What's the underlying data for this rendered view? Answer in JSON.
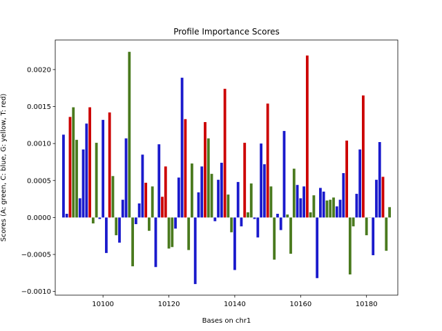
{
  "chart_data": {
    "type": "bar",
    "title": "Profile Importance Scores",
    "xlabel": "Bases on chr1",
    "ylabel": "Scores (A: green, C: blue, G: yellow, T: red)",
    "xlim": [
      10085.5,
      10189.5
    ],
    "ylim": [
      -0.00105,
      0.0024
    ],
    "xticks": [
      10100,
      10120,
      10140,
      10160,
      10180
    ],
    "yticks": [
      -0.001,
      -0.0005,
      0.0,
      0.0005,
      0.001,
      0.0015,
      0.002
    ],
    "ytick_labels": [
      "−0.0010",
      "−0.0005",
      "0.0000",
      "0.0005",
      "0.0010",
      "0.0015",
      "0.0020"
    ],
    "grid": false,
    "colors": {
      "A": "#4a7a1e",
      "C": "#1a1acc",
      "G": "#ffb000",
      "T": "#cc0000"
    },
    "x": [
      10088,
      10089,
      10090,
      10091,
      10092,
      10093,
      10094,
      10095,
      10096,
      10097,
      10098,
      10099,
      10100,
      10101,
      10102,
      10103,
      10104,
      10105,
      10106,
      10107,
      10108,
      10109,
      10110,
      10111,
      10112,
      10113,
      10114,
      10115,
      10116,
      10117,
      10118,
      10119,
      10120,
      10121,
      10122,
      10123,
      10124,
      10125,
      10126,
      10127,
      10128,
      10129,
      10130,
      10131,
      10132,
      10133,
      10134,
      10135,
      10136,
      10137,
      10138,
      10139,
      10140,
      10141,
      10142,
      10143,
      10144,
      10145,
      10146,
      10147,
      10148,
      10149,
      10150,
      10151,
      10152,
      10153,
      10154,
      10155,
      10156,
      10157,
      10158,
      10159,
      10160,
      10161,
      10162,
      10163,
      10164,
      10165,
      10166,
      10167,
      10168,
      10169,
      10170,
      10171,
      10172,
      10173,
      10174,
      10175,
      10176,
      10177,
      10178,
      10179,
      10180,
      10181,
      10182,
      10183,
      10184,
      10185,
      10186,
      10187
    ],
    "values": [
      0.00112,
      5e-05,
      0.00136,
      0.00149,
      0.00105,
      0.00026,
      0.00092,
      0.00127,
      0.00149,
      -8e-05,
      0.00101,
      -2e-05,
      0.00132,
      -0.00048,
      0.00142,
      0.00056,
      -0.00024,
      -0.00034,
      0.00024,
      0.00107,
      0.00224,
      -0.00066,
      -9e-05,
      0.00019,
      0.00085,
      0.00047,
      -0.00018,
      0.00042,
      -0.00067,
      0.00099,
      0.00028,
      0.00069,
      -0.00042,
      -0.0004,
      -0.00015,
      0.00054,
      0.00189,
      0.00133,
      -0.00044,
      0.00073,
      -0.0009,
      0.00034,
      0.00069,
      0.00129,
      0.00107,
      0.00059,
      -5e-05,
      0.00051,
      0.00074,
      0.00174,
      0.00031,
      -0.0002,
      -0.00071,
      0.00048,
      -0.00012,
      0.00101,
      7e-05,
      0.00046,
      -2e-05,
      -0.00027,
      0.001,
      0.00072,
      0.00154,
      0.00042,
      -0.00057,
      5e-05,
      -0.00017,
      0.00117,
      4e-05,
      -0.00049,
      0.00066,
      0.00044,
      0.00026,
      0.00042,
      0.00219,
      7e-05,
      0.0003,
      -0.00082,
      0.0004,
      0.00035,
      0.00023,
      0.00024,
      0.00027,
      0.00015,
      0.00024,
      0.0006,
      0.00104,
      -0.00077,
      -0.00012,
      0.00032,
      0.00092,
      0.00165,
      -0.00024,
      0.0,
      -0.00051,
      0.00051,
      0.00102,
      0.00055,
      -0.00045,
      0.00014
    ],
    "bases": [
      "C",
      "C",
      "T",
      "A",
      "A",
      "C",
      "C",
      "C",
      "T",
      "A",
      "A",
      "C",
      "C",
      "C",
      "T",
      "A",
      "A",
      "C",
      "C",
      "C",
      "A",
      "A",
      "C",
      "C",
      "C",
      "T",
      "A",
      "A",
      "C",
      "C",
      "T",
      "T",
      "A",
      "A",
      "C",
      "C",
      "C",
      "T",
      "A",
      "A",
      "C",
      "C",
      "C",
      "T",
      "A",
      "A",
      "C",
      "C",
      "C",
      "T",
      "A",
      "A",
      "C",
      "C",
      "C",
      "T",
      "A",
      "A",
      "C",
      "C",
      "C",
      "C",
      "T",
      "A",
      "A",
      "C",
      "C",
      "C",
      "A",
      "A",
      "A",
      "C",
      "C",
      "C",
      "T",
      "A",
      "A",
      "C",
      "C",
      "C",
      "A",
      "A",
      "A",
      "C",
      "C",
      "C",
      "T",
      "A",
      "A",
      "C",
      "C",
      "T",
      "A",
      "A",
      "C",
      "C",
      "C",
      "T",
      "A",
      "A"
    ]
  }
}
